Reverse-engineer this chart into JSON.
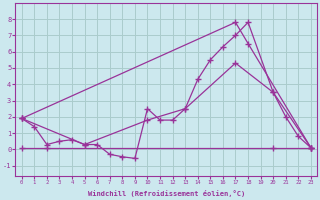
{
  "xlabel": "Windchill (Refroidissement éolien,°C)",
  "bg_color": "#cce8ee",
  "grid_color": "#aacccc",
  "line_color": "#993399",
  "xlim": [
    -0.5,
    23.5
  ],
  "ylim": [
    -1.6,
    9.0
  ],
  "yticks": [
    -1,
    0,
    1,
    2,
    3,
    4,
    5,
    6,
    7,
    8
  ],
  "xticks": [
    0,
    1,
    2,
    3,
    4,
    5,
    6,
    7,
    8,
    9,
    10,
    11,
    12,
    13,
    14,
    15,
    16,
    17,
    18,
    19,
    20,
    21,
    22,
    23
  ],
  "lines": [
    {
      "x": [
        0,
        1,
        2,
        3,
        4,
        5,
        6,
        7,
        8,
        9,
        10,
        11,
        12,
        13,
        14,
        15,
        16,
        17,
        18,
        20,
        21,
        22,
        23
      ],
      "y": [
        1.9,
        1.4,
        0.3,
        0.5,
        0.6,
        0.3,
        0.3,
        -0.3,
        -0.45,
        -0.55,
        2.5,
        1.8,
        1.8,
        2.5,
        4.3,
        5.5,
        6.3,
        7.0,
        7.8,
        3.5,
        2.0,
        0.8,
        0.1
      ]
    },
    {
      "x": [
        0,
        17,
        18,
        23
      ],
      "y": [
        1.9,
        7.8,
        6.5,
        0.1
      ]
    },
    {
      "x": [
        0,
        5,
        10,
        13,
        17,
        20,
        23
      ],
      "y": [
        1.9,
        0.3,
        1.8,
        2.5,
        5.3,
        3.5,
        0.1
      ]
    },
    {
      "x": [
        0,
        2,
        20,
        23
      ],
      "y": [
        0.1,
        0.1,
        0.1,
        0.1
      ]
    }
  ]
}
